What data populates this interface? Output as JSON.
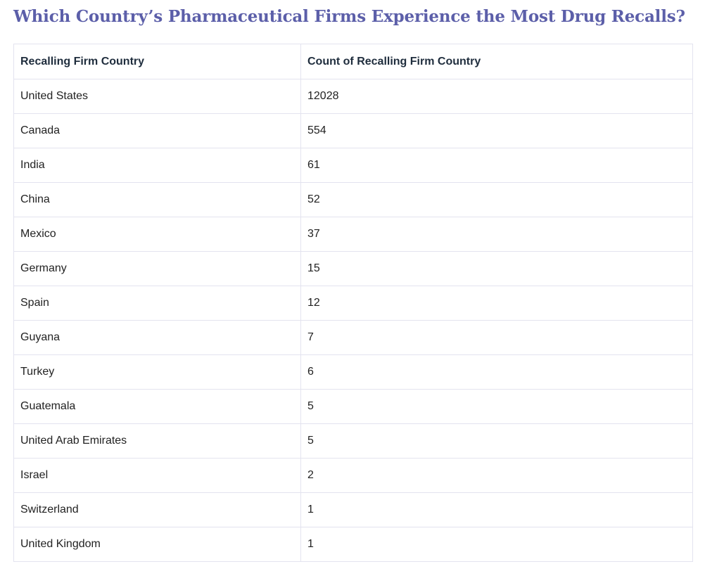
{
  "title": "Which Country’s Pharmaceutical Firms Experience the Most Drug Recalls?",
  "table": {
    "headers": [
      "Recalling Firm Country",
      "Count of Recalling Firm Country"
    ],
    "rows": [
      {
        "country": "United States",
        "count": "12028"
      },
      {
        "country": "Canada",
        "count": "554"
      },
      {
        "country": "India",
        "count": "61"
      },
      {
        "country": "China",
        "count": "52"
      },
      {
        "country": "Mexico",
        "count": "37"
      },
      {
        "country": "Germany",
        "count": "15"
      },
      {
        "country": "Spain",
        "count": "12"
      },
      {
        "country": "Guyana",
        "count": "7"
      },
      {
        "country": "Turkey",
        "count": "6"
      },
      {
        "country": "Guatemala",
        "count": "5"
      },
      {
        "country": "United Arab Emirates",
        "count": "5"
      },
      {
        "country": "Israel",
        "count": "2"
      },
      {
        "country": "Switzerland",
        "count": "1"
      },
      {
        "country": "United Kingdom",
        "count": "1"
      }
    ]
  },
  "colors": {
    "title": "#5c5fa9",
    "border": "#e3e3ef",
    "header_text": "#1f2d3d"
  }
}
